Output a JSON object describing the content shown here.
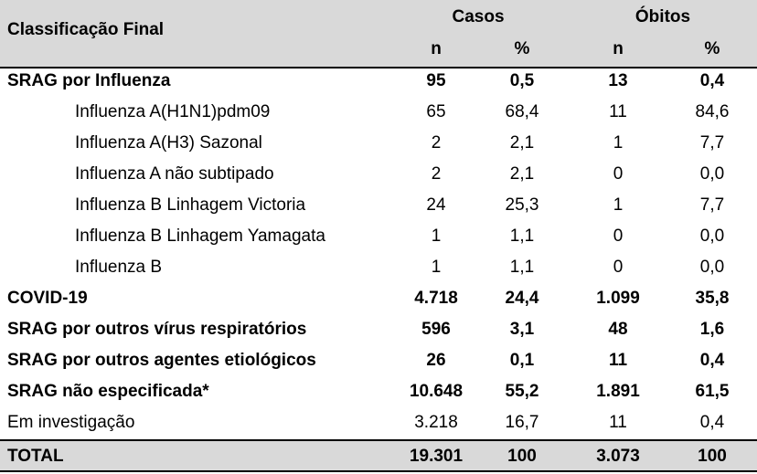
{
  "header": {
    "classification": "Classificação Final",
    "cases_group": "Casos",
    "deaths_group": "Óbitos",
    "n": "n",
    "pct": "%"
  },
  "rows": [
    {
      "label": "SRAG por Influenza",
      "cases_n": "95",
      "cases_pct": "0,5",
      "deaths_n": "13",
      "deaths_pct": "0,4"
    },
    {
      "label": "Influenza A(H1N1)pdm09",
      "cases_n": "65",
      "cases_pct": "68,4",
      "deaths_n": "11",
      "deaths_pct": "84,6"
    },
    {
      "label": "Influenza A(H3) Sazonal",
      "cases_n": "2",
      "cases_pct": "2,1",
      "deaths_n": "1",
      "deaths_pct": "7,7"
    },
    {
      "label": "Influenza A não subtipado",
      "cases_n": "2",
      "cases_pct": "2,1",
      "deaths_n": "0",
      "deaths_pct": "0,0"
    },
    {
      "label": "Influenza B Linhagem Victoria",
      "cases_n": "24",
      "cases_pct": "25,3",
      "deaths_n": "1",
      "deaths_pct": "7,7"
    },
    {
      "label": "Influenza B Linhagem Yamagata",
      "cases_n": "1",
      "cases_pct": "1,1",
      "deaths_n": "0",
      "deaths_pct": "0,0"
    },
    {
      "label": "Influenza B",
      "cases_n": "1",
      "cases_pct": "1,1",
      "deaths_n": "0",
      "deaths_pct": "0,0"
    },
    {
      "label": "COVID-19",
      "cases_n": "4.718",
      "cases_pct": "24,4",
      "deaths_n": "1.099",
      "deaths_pct": "35,8"
    },
    {
      "label": "SRAG por outros vírus respiratórios",
      "cases_n": "596",
      "cases_pct": "3,1",
      "deaths_n": "48",
      "deaths_pct": "1,6"
    },
    {
      "label": "SRAG por outros agentes etiológicos",
      "cases_n": "26",
      "cases_pct": "0,1",
      "deaths_n": "11",
      "deaths_pct": "0,4"
    },
    {
      "label": "SRAG não especificada*",
      "cases_n": "10.648",
      "cases_pct": "55,2",
      "deaths_n": "1.891",
      "deaths_pct": "61,5"
    },
    {
      "label": "Em investigação",
      "cases_n": "3.218",
      "cases_pct": "16,7",
      "deaths_n": "11",
      "deaths_pct": "0,4"
    },
    {
      "label": "TOTAL",
      "cases_n": "19.301",
      "cases_pct": "100",
      "deaths_n": "3.073",
      "deaths_pct": "100"
    }
  ]
}
